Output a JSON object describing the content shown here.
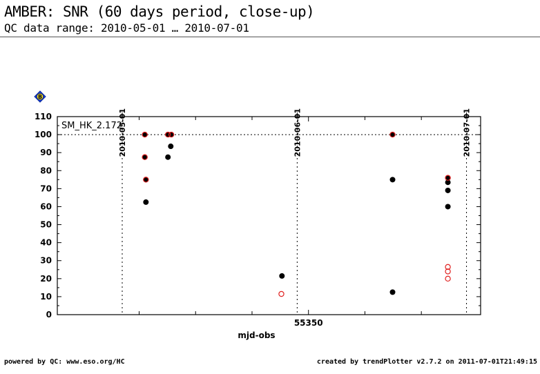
{
  "header": {
    "title": "AMBER: SNR (60 days period, close-up)",
    "subtitle": "QC data range: 2010-05-01 … 2010-07-01"
  },
  "footer": {
    "left": "powered by QC: www.eso.org/HC",
    "right": "created by trendPlotter v2.7.2 on 2011-07-01T21:49:15"
  },
  "badge": {
    "icon": "diamond-marker-icon",
    "label": "B",
    "color": "#1a3fd6"
  },
  "chart_data": {
    "type": "scatter",
    "panel_label": "SM_HK_2.172",
    "xlabel": "mjd-obs",
    "xlim": [
      55305.5,
      55380.5
    ],
    "ylim": [
      0,
      110
    ],
    "yticks": [
      0,
      10,
      20,
      30,
      40,
      50,
      60,
      70,
      80,
      90,
      100,
      110
    ],
    "xtick_labels": [
      {
        "value": 55350,
        "label": "55350"
      }
    ],
    "minor_xticks": [
      55320,
      55330,
      55340,
      55360,
      55370
    ],
    "date_markers": [
      {
        "value": 55317,
        "label": "2010-05-01"
      },
      {
        "value": 55348,
        "label": "2010-06-01"
      },
      {
        "value": 55378,
        "label": "2010-07-01"
      }
    ],
    "reference_line": {
      "y": 100,
      "style": "dotted"
    },
    "series": [
      {
        "marker": "filled-circle",
        "color": "#000000",
        "points": [
          {
            "x": 55321.0,
            "y": 100
          },
          {
            "x": 55321.0,
            "y": 87.5
          },
          {
            "x": 55321.2,
            "y": 75
          },
          {
            "x": 55321.2,
            "y": 62.5
          },
          {
            "x": 55325.1,
            "y": 100
          },
          {
            "x": 55325.7,
            "y": 100
          },
          {
            "x": 55325.1,
            "y": 87.5
          },
          {
            "x": 55325.6,
            "y": 93.5
          },
          {
            "x": 55345.3,
            "y": 21.5
          },
          {
            "x": 55364.9,
            "y": 100
          },
          {
            "x": 55364.9,
            "y": 75
          },
          {
            "x": 55364.9,
            "y": 12.5
          },
          {
            "x": 55374.7,
            "y": 76
          },
          {
            "x": 55374.7,
            "y": 73.5
          },
          {
            "x": 55374.7,
            "y": 69
          },
          {
            "x": 55374.7,
            "y": 60
          }
        ]
      },
      {
        "marker": "open-circle",
        "color": "#e0201f",
        "points": [
          {
            "x": 55321.0,
            "y": 100
          },
          {
            "x": 55321.0,
            "y": 87.5
          },
          {
            "x": 55321.2,
            "y": 75
          },
          {
            "x": 55325.1,
            "y": 100
          },
          {
            "x": 55325.7,
            "y": 100
          },
          {
            "x": 55345.2,
            "y": 11.5
          },
          {
            "x": 55364.9,
            "y": 100
          },
          {
            "x": 55374.7,
            "y": 76
          },
          {
            "x": 55374.7,
            "y": 26.5
          },
          {
            "x": 55374.7,
            "y": 24
          },
          {
            "x": 55374.7,
            "y": 20
          }
        ]
      }
    ]
  }
}
